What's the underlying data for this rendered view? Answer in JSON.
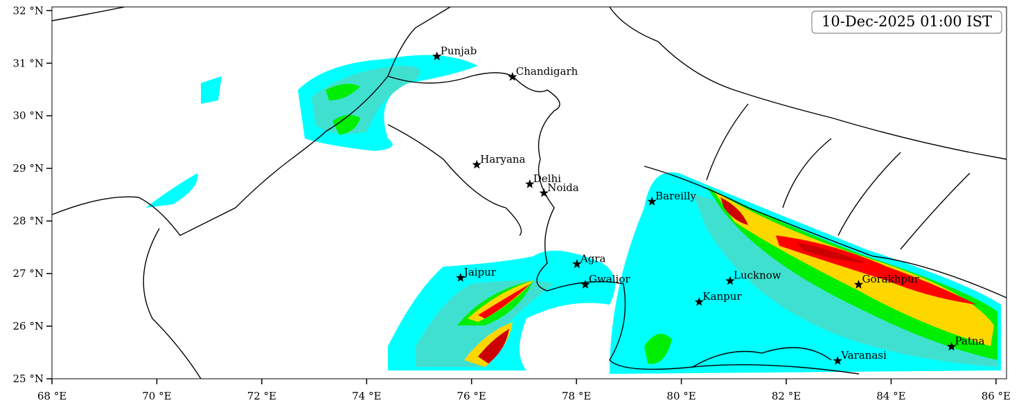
{
  "map": {
    "timestamp": "10-Dec-2025 01:00 IST",
    "xlim": [
      68,
      86.2
    ],
    "ylim": [
      25,
      32.07
    ],
    "xticks": [
      {
        "value": 68,
        "label": "68 °E"
      },
      {
        "value": 70,
        "label": "70 °E"
      },
      {
        "value": 72,
        "label": "72 °E"
      },
      {
        "value": 74,
        "label": "74 °E"
      },
      {
        "value": 76,
        "label": "76 °E"
      },
      {
        "value": 78,
        "label": "78 °E"
      },
      {
        "value": 80,
        "label": "80 °E"
      },
      {
        "value": 82,
        "label": "82 °E"
      },
      {
        "value": 84,
        "label": "84 °E"
      },
      {
        "value": 86,
        "label": "86 °E"
      }
    ],
    "yticks": [
      {
        "value": 25,
        "label": "25 °N"
      },
      {
        "value": 26,
        "label": "26 °N"
      },
      {
        "value": 27,
        "label": "27 °N"
      },
      {
        "value": 28,
        "label": "28 °N"
      },
      {
        "value": 29,
        "label": "29 °N"
      },
      {
        "value": 30,
        "label": "30 °N"
      },
      {
        "value": 31,
        "label": "31 °N"
      },
      {
        "value": 32,
        "label": "32 °N"
      }
    ],
    "cities": [
      {
        "name": "Punjab",
        "lon": 75.34,
        "lat": 31.13
      },
      {
        "name": "Chandigarh",
        "lon": 76.78,
        "lat": 30.74
      },
      {
        "name": "Haryana",
        "lon": 76.1,
        "lat": 29.07
      },
      {
        "name": "Delhi",
        "lon": 77.11,
        "lat": 28.7
      },
      {
        "name": "Noida",
        "lon": 77.38,
        "lat": 28.53
      },
      {
        "name": "Bareilly",
        "lon": 79.44,
        "lat": 28.37
      },
      {
        "name": "Agra",
        "lon": 78.01,
        "lat": 27.18
      },
      {
        "name": "Jaipur",
        "lon": 75.79,
        "lat": 26.92
      },
      {
        "name": "Gwalior",
        "lon": 78.17,
        "lat": 26.79
      },
      {
        "name": "Lucknow",
        "lon": 80.93,
        "lat": 26.86
      },
      {
        "name": "Kanpur",
        "lon": 80.34,
        "lat": 26.46
      },
      {
        "name": "Gorakhpur",
        "lon": 83.38,
        "lat": 26.79
      },
      {
        "name": "Patna",
        "lon": 85.15,
        "lat": 25.61
      },
      {
        "name": "Varanasi",
        "lon": 82.98,
        "lat": 25.34
      }
    ]
  }
}
